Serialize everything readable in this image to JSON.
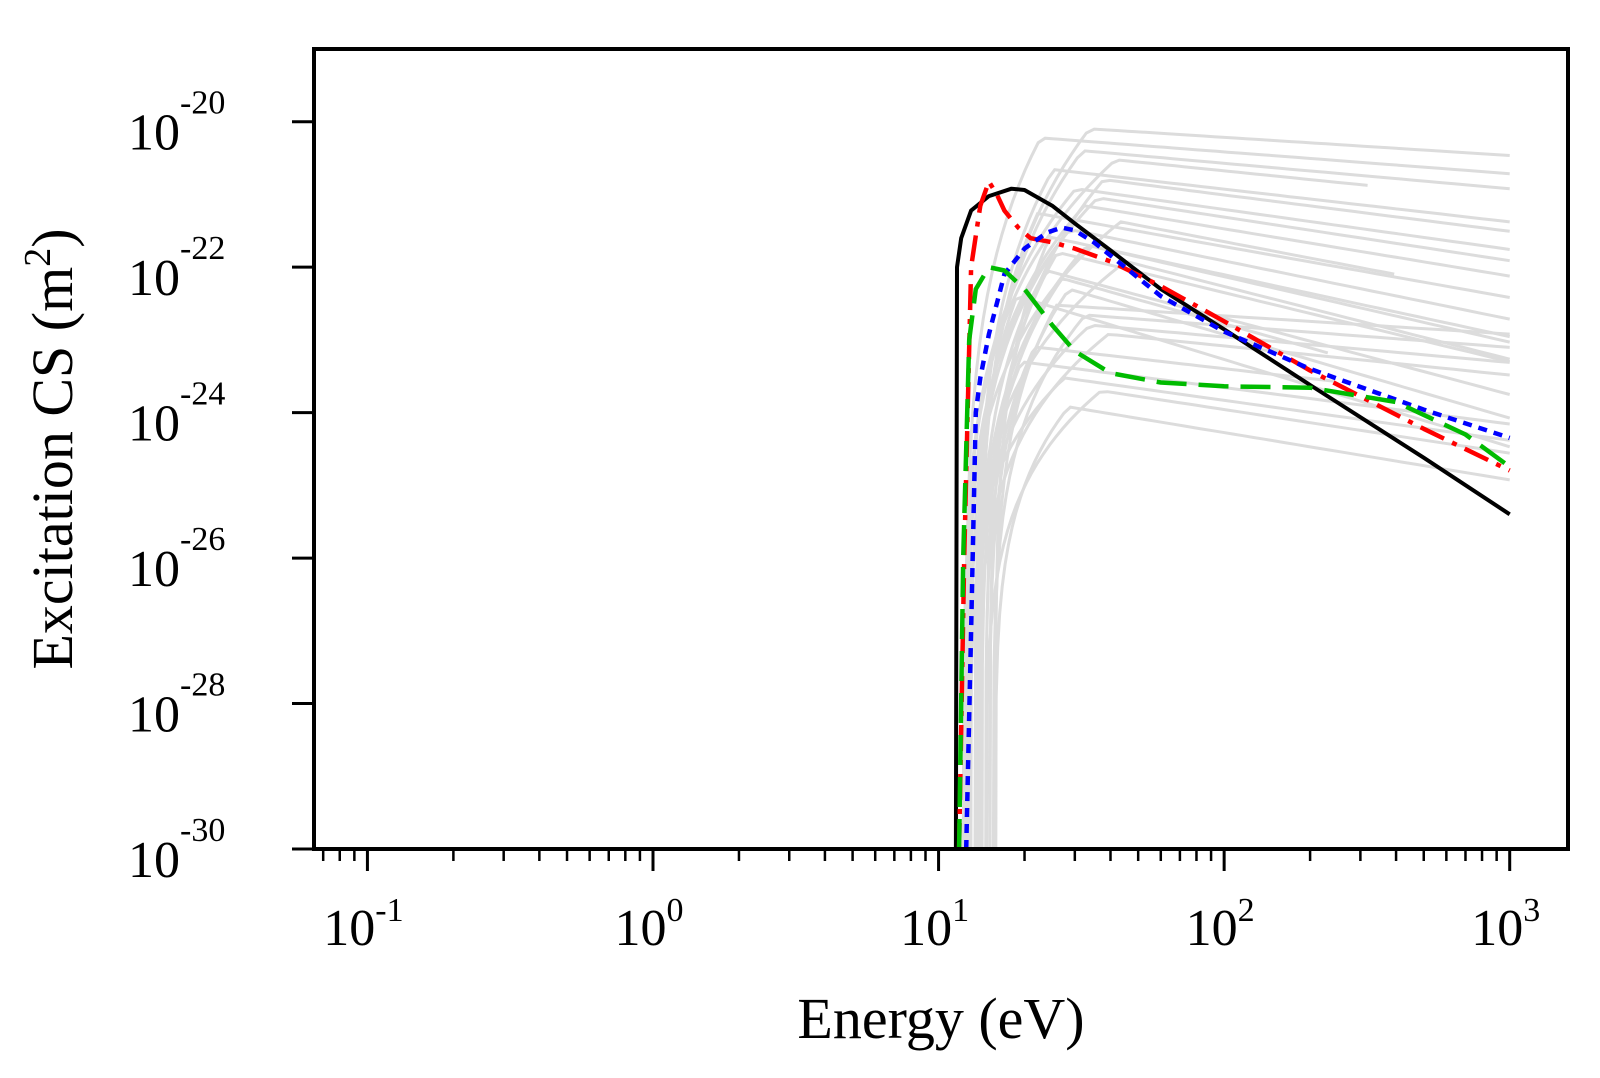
{
  "chart_data": {
    "type": "line",
    "xlabel": "Energy (eV)",
    "ylabel_main": "Excitation CS (m",
    "ylabel_sup": "2",
    "ylabel_close": ")",
    "xscale": "log",
    "yscale": "log",
    "xlim": [
      0.065,
      1600
    ],
    "ylim": [
      1e-30,
      1e-19
    ],
    "grid": false,
    "legend": "none",
    "xticks": [
      {
        "base": "10",
        "exp": "-1",
        "value": 0.1
      },
      {
        "base": "10",
        "exp": "0",
        "value": 1
      },
      {
        "base": "10",
        "exp": "1",
        "value": 10
      },
      {
        "base": "10",
        "exp": "2",
        "value": 100
      },
      {
        "base": "10",
        "exp": "3",
        "value": 1000
      }
    ],
    "yticks": [
      {
        "base": "10",
        "exp": "-20",
        "value": 1e-20
      },
      {
        "base": "10",
        "exp": "-22",
        "value": 1e-22
      },
      {
        "base": "10",
        "exp": "-24",
        "value": 1e-24
      },
      {
        "base": "10",
        "exp": "-26",
        "value": 1e-26
      },
      {
        "base": "10",
        "exp": "-28",
        "value": 1e-28
      },
      {
        "base": "10",
        "exp": "-30",
        "value": 1e-30
      }
    ],
    "series": [
      {
        "color": "#000000",
        "dash": "solid",
        "width": 4,
        "x": [
          11.5,
          11.6,
          12,
          13,
          15,
          18,
          20,
          25,
          30,
          40,
          60,
          100,
          200,
          500,
          1000
        ],
        "y": [
          1e-30,
          1e-22,
          2.5e-22,
          6e-22,
          9.5e-22,
          1.2e-21,
          1.15e-21,
          7e-22,
          4e-22,
          1.7e-22,
          5e-23,
          1.4e-23,
          2.4e-24,
          2.4e-25,
          4e-26
        ]
      },
      {
        "color": "#ff0000",
        "dash": "dashdot",
        "width": 4.5,
        "x": [
          11.8,
          12.3,
          13,
          14,
          15,
          16,
          17,
          19,
          21,
          25,
          30,
          40,
          60,
          100,
          200,
          500,
          1000
        ],
        "y": [
          1e-30,
          1e-26,
          1e-22,
          7e-22,
          1.5e-21,
          1e-21,
          6e-22,
          3.5e-22,
          2.5e-22,
          2.2e-22,
          1.8e-22,
          1.2e-22,
          5.5e-23,
          1.8e-23,
          3.8e-24,
          6e-25,
          1.6e-25
        ]
      },
      {
        "color": "#0000ff",
        "dash": "dotted",
        "width": 4.5,
        "x": [
          12.5,
          13,
          13.5,
          14,
          15,
          17,
          20,
          24,
          27,
          30,
          35,
          45,
          60,
          100,
          200,
          500,
          1000
        ],
        "y": [
          1e-30,
          1e-27,
          1e-24,
          3e-24,
          1.2e-23,
          8e-23,
          1.8e-22,
          3e-22,
          3.5e-22,
          3.2e-22,
          2.2e-22,
          1e-22,
          4e-23,
          1.3e-23,
          4e-24,
          1.1e-24,
          4.5e-25
        ]
      },
      {
        "color": "#00bb00",
        "dash": "dashed",
        "width": 4.5,
        "x": [
          11.8,
          12.2,
          12.8,
          13.5,
          15,
          17,
          20,
          25,
          30,
          40,
          60,
          100,
          200,
          400,
          700,
          1000
        ],
        "y": [
          1e-30,
          1e-26,
          1e-23,
          5e-23,
          1e-22,
          9e-23,
          5e-23,
          1.6e-23,
          7e-24,
          3.5e-24,
          2.6e-24,
          2.3e-24,
          2.2e-24,
          1.4e-24,
          5e-25,
          1.8e-25
        ]
      }
    ],
    "background_bundle": {
      "color": "#dcdcdc",
      "width": 3,
      "peak_upper": [
        8e-21,
        6e-21,
        4e-21,
        3e-21,
        2.2e-21,
        1.6e-21,
        1.2e-21,
        9e-22,
        7e-22,
        5.5e-22,
        4.2e-22,
        3.3e-22,
        2.6e-22,
        2e-22,
        1.6e-22,
        1.2e-22,
        9e-23,
        7e-23,
        5e-23,
        4e-23,
        3e-23,
        2.2e-23,
        1.6e-23,
        1.2e-23,
        8e-24,
        5e-24,
        3e-24,
        2e-24,
        1.2e-24
      ],
      "tail_slopes": [
        -0.25,
        -0.3,
        -0.35,
        -0.4,
        -0.45,
        -0.5,
        -0.55,
        -0.6,
        -0.65,
        -0.7,
        -0.75,
        -0.8,
        -0.85,
        -0.9,
        -0.95,
        -1.0,
        -1.05,
        -1.1,
        -1.15,
        -1.2
      ]
    }
  }
}
